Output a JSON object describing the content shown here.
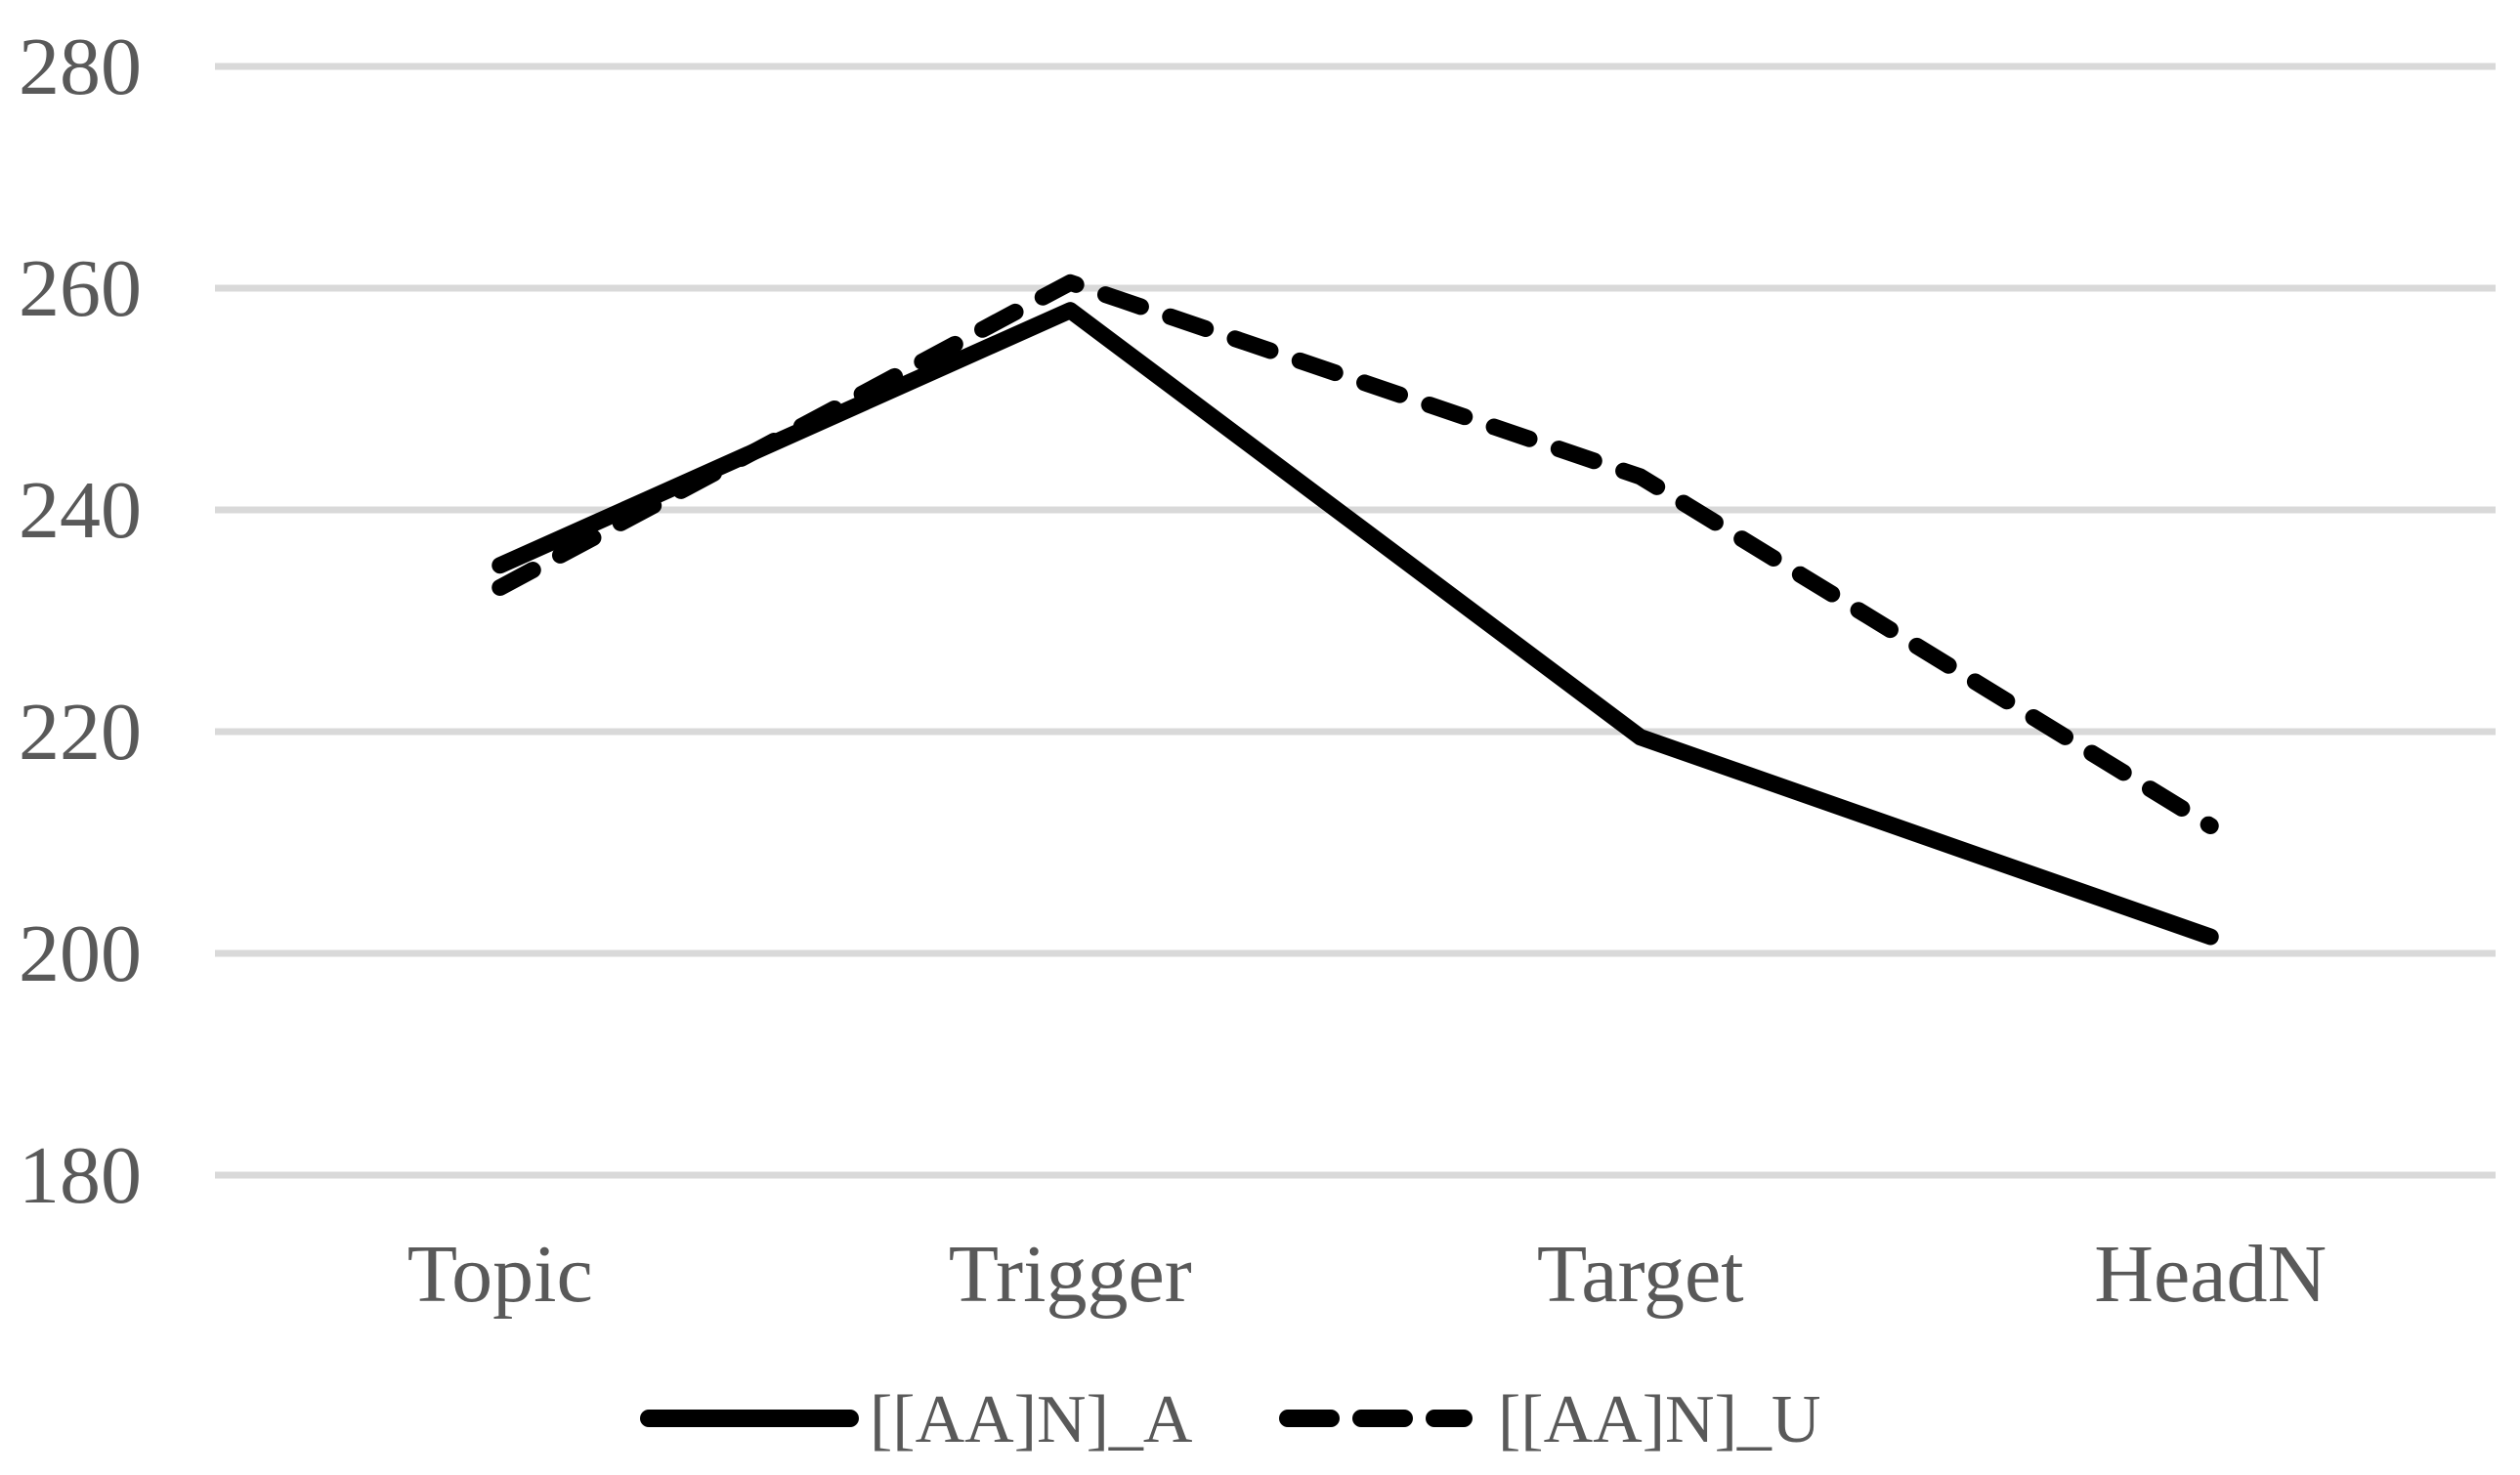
{
  "chart_data": {
    "type": "line",
    "title": "",
    "xlabel": "",
    "ylabel": "",
    "categories": [
      "Topic",
      "Trigger",
      "Target",
      "HeadN"
    ],
    "series": [
      {
        "name": "[[AA]N]_A",
        "style": "solid",
        "values": [
          235,
          258,
          219.5,
          201.5
        ]
      },
      {
        "name": "[[AA]N]_U",
        "style": "dashed",
        "values": [
          233,
          260.5,
          243,
          211.5
        ]
      }
    ],
    "ylim": [
      180,
      280
    ],
    "yticks": [
      180,
      200,
      220,
      240,
      260,
      280
    ],
    "ytick_labels": [
      "180",
      "200",
      "220",
      "240",
      "260",
      "280"
    ],
    "grid": true,
    "legend_position": "bottom",
    "legend_entries": [
      "[[AA]N]_A",
      "[[AA]N]_U"
    ],
    "colors": {
      "series": "#000000",
      "grid": "#d9d9d9",
      "text": "#595959",
      "background": "#ffffff"
    }
  }
}
